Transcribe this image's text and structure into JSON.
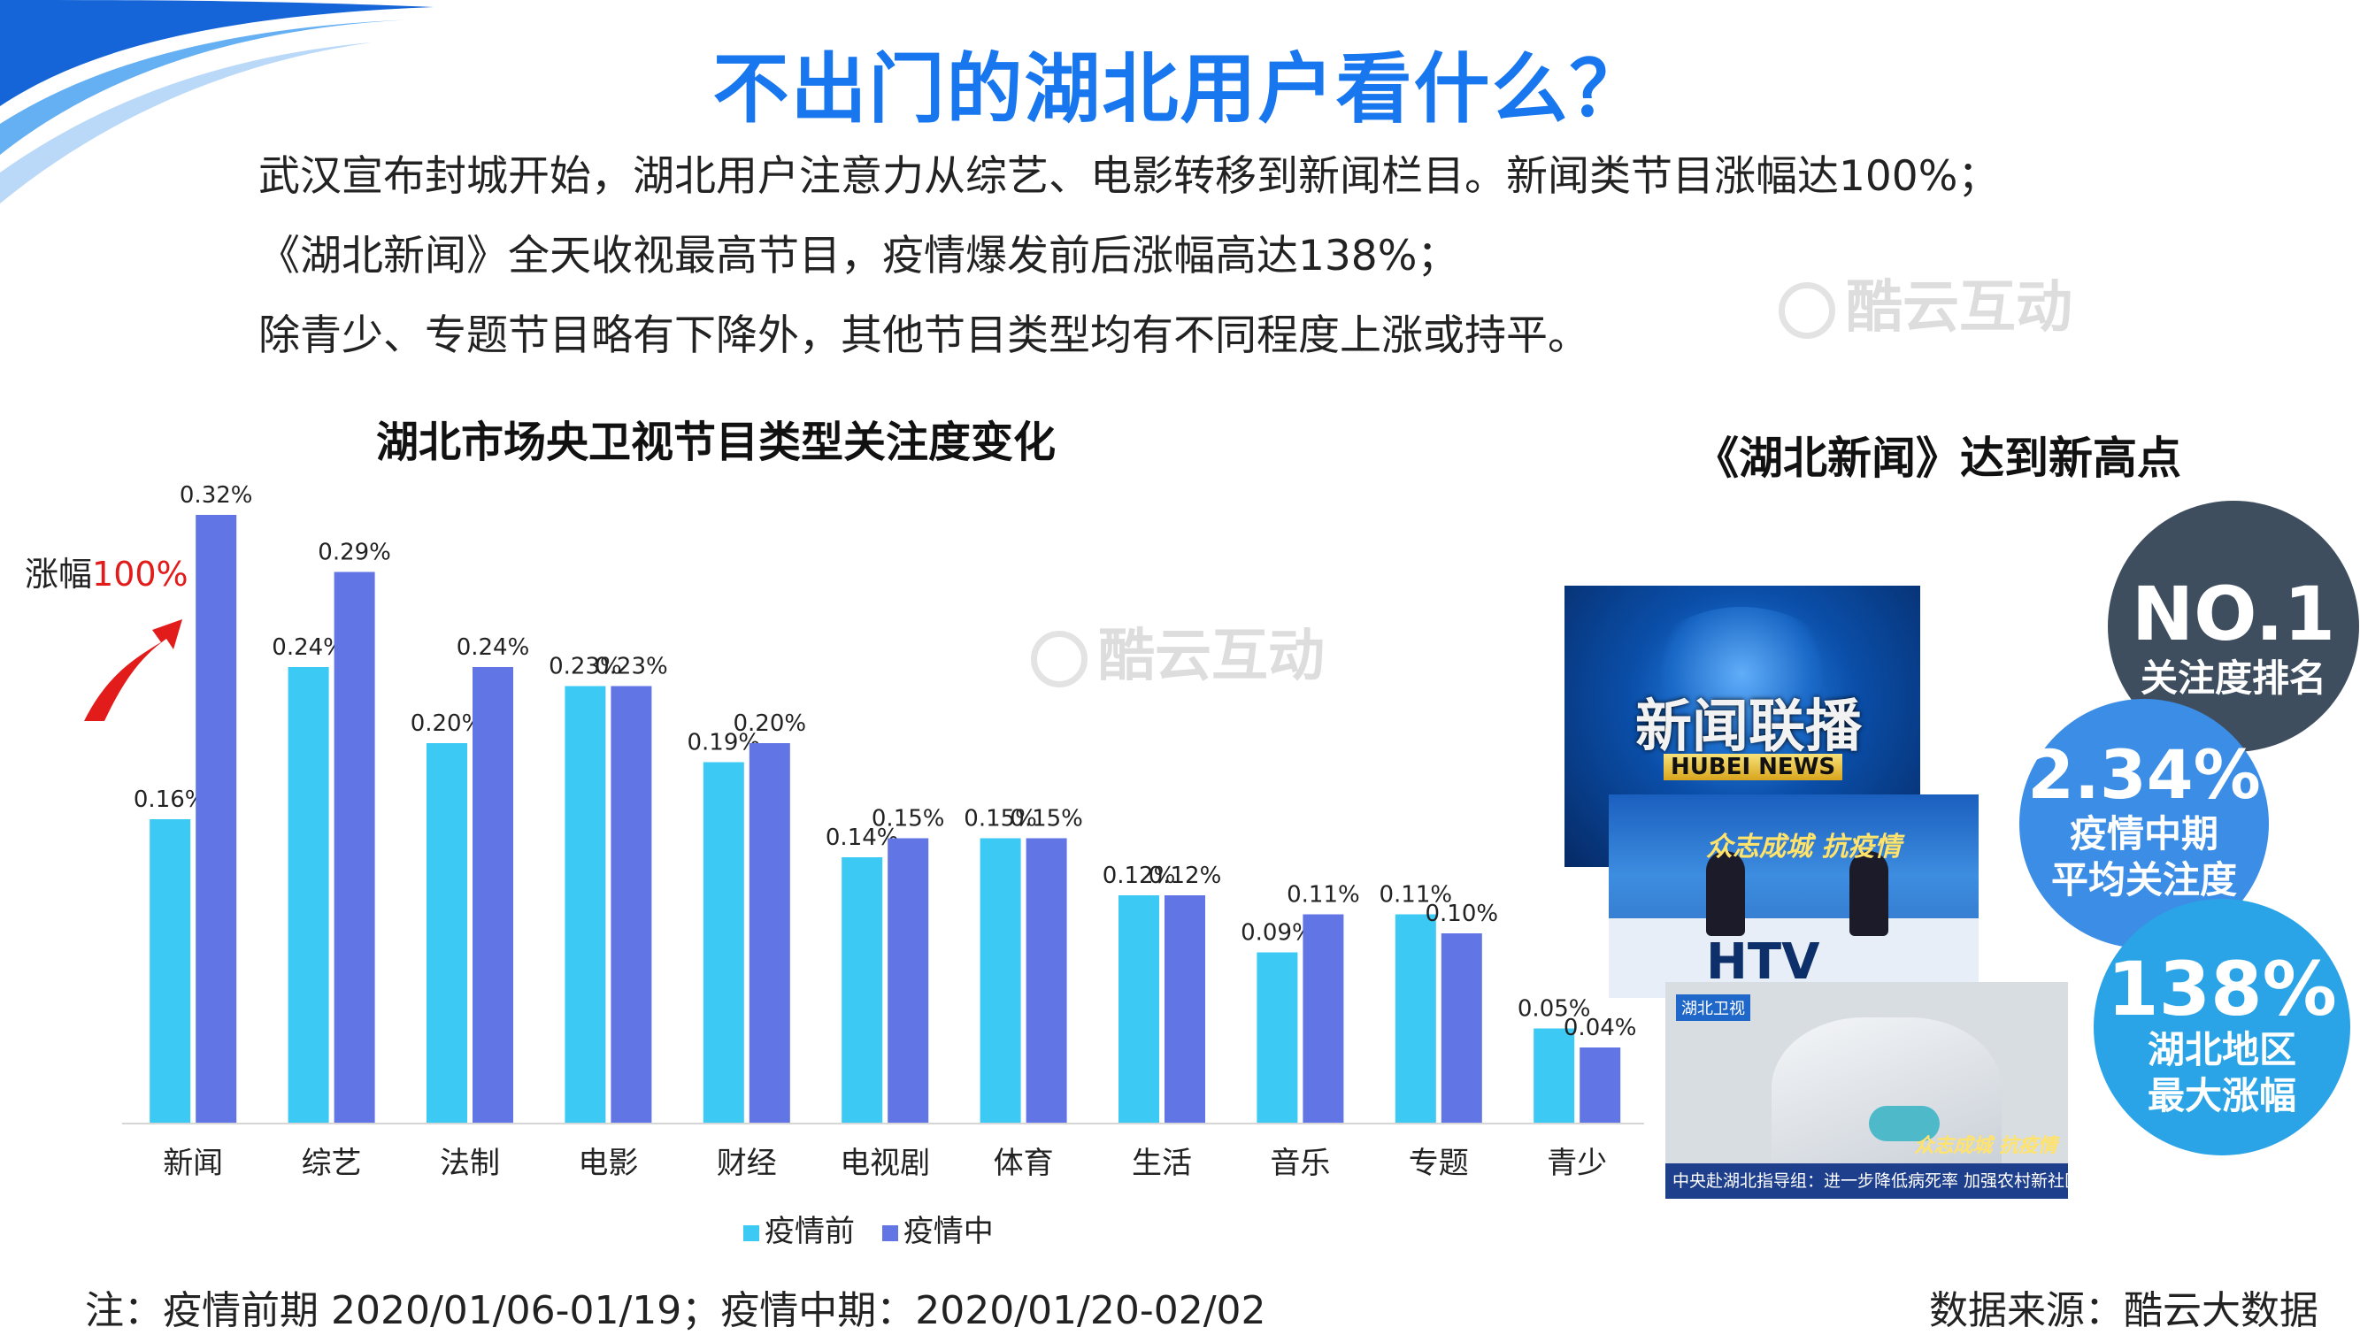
{
  "title": "不出门的湖北用户看什么？",
  "paragraphs": [
    "武汉宣布封城开始，湖北用户注意力从综艺、电影转移到新闻栏目。新闻类节目涨幅达100%；",
    "《湖北新闻》全天收视最高节目，疫情爆发前后涨幅高达138%；",
    "除青少、专题节目略有下降外，其他节目类型均有不同程度上涨或持平。"
  ],
  "watermark": "酷云互动",
  "rise_label": {
    "prefix": "涨幅",
    "value": "100%"
  },
  "right_panel": {
    "title": "《湖北新闻》达到新高点",
    "shots": {
      "shot1_cn": "新闻联播",
      "shot1_en": "HUBEI NEWS",
      "shot2_slogan": "众志成城 抗疫情",
      "shot2_htv": "HTV",
      "shot3_logo": "湖北卫视",
      "shot3_slogan": "众志成城 抗疫情",
      "shot3_ticker": "中央赴湖北指导组：进一步降低病死率 加强农村新社区防控"
    },
    "badges": [
      {
        "big": "NO.1",
        "sub": "关注度排名"
      },
      {
        "big": "2.34%",
        "sub1": "疫情中期",
        "sub2": "平均关注度"
      },
      {
        "big": "138%",
        "sub1": "湖北地区",
        "sub2": "最大涨幅"
      }
    ]
  },
  "chart_data": {
    "type": "bar",
    "title": "湖北市场央卫视节目类型关注度变化",
    "categories": [
      "新闻",
      "综艺",
      "法制",
      "电影",
      "财经",
      "电视剧",
      "体育",
      "生活",
      "音乐",
      "专题",
      "青少"
    ],
    "series": [
      {
        "name": "疫情前",
        "color": "#3ccaf5",
        "values": [
          0.16,
          0.24,
          0.2,
          0.23,
          0.19,
          0.14,
          0.15,
          0.12,
          0.09,
          0.11,
          0.05
        ]
      },
      {
        "name": "疫情中",
        "color": "#6275e4",
        "values": [
          0.32,
          0.29,
          0.24,
          0.23,
          0.2,
          0.15,
          0.15,
          0.12,
          0.11,
          0.1,
          0.04
        ]
      }
    ],
    "value_suffix": "%",
    "ylim": [
      0,
      0.32
    ],
    "grid": false,
    "legend_position": "bottom"
  },
  "footnote": "注：疫情前期 2020/01/06-01/19；疫情中期：2020/01/20-02/02",
  "source": "数据来源：酷云大数据"
}
